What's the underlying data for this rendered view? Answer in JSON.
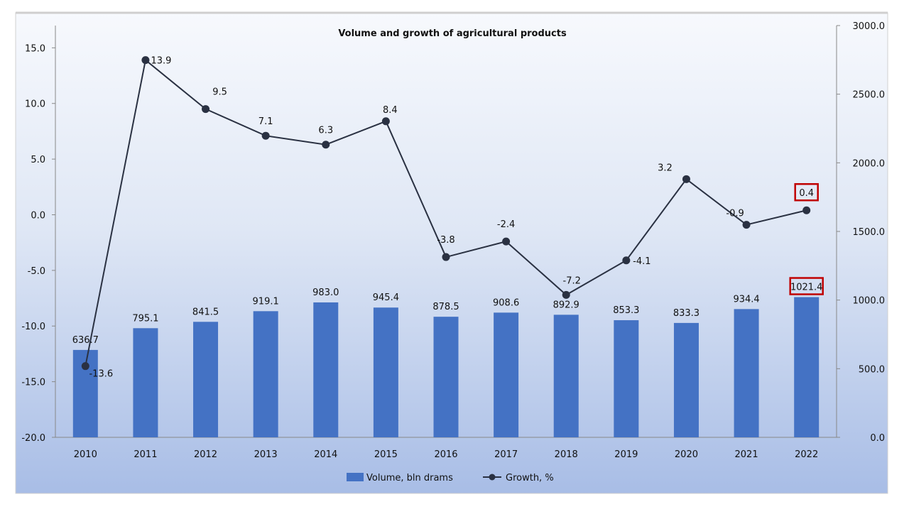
{
  "chart_data": {
    "type": "bar+line",
    "title": "Volume and growth of agricultural products",
    "categories": [
      "2010",
      "2011",
      "2012",
      "2013",
      "2014",
      "2015",
      "2016",
      "2017",
      "2018",
      "2019",
      "2020",
      "2021",
      "2022"
    ],
    "series": [
      {
        "name": "Volume, bln drams",
        "type": "bar",
        "axis": "right",
        "color": "#4472c4",
        "values": [
          636.7,
          795.1,
          841.5,
          919.1,
          983.0,
          945.4,
          878.5,
          908.6,
          892.9,
          853.3,
          833.3,
          934.4,
          1021.4
        ]
      },
      {
        "name": "Growth, %",
        "type": "line",
        "axis": "left",
        "color": "#2a3142",
        "values": [
          -13.6,
          13.9,
          9.5,
          7.1,
          6.3,
          8.4,
          -3.8,
          -2.4,
          -7.2,
          -4.1,
          3.2,
          -0.9,
          0.4
        ]
      }
    ],
    "left_axis": {
      "ylim": [
        -20,
        17
      ],
      "ticks": [
        "-20.0",
        "-15.0",
        "-10.0",
        "-5.0",
        "0.0",
        "5.0",
        "10.0",
        "15.0"
      ]
    },
    "right_axis": {
      "ylim": [
        0,
        3000
      ],
      "ticks": [
        "0.0",
        "500.0",
        "1000.0",
        "1500.0",
        "2000.0",
        "2500.0",
        "3000.0"
      ]
    },
    "highlighted": [
      "2022"
    ],
    "highlight_color": "#c00000",
    "legend": "bottom",
    "grid": false
  }
}
